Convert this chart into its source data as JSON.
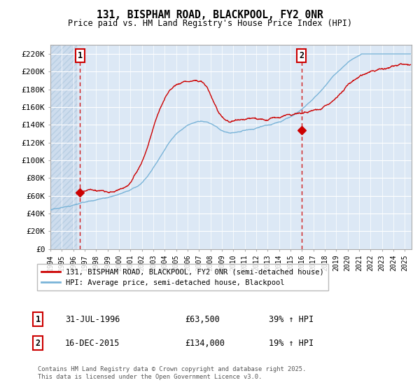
{
  "title1": "131, BISPHAM ROAD, BLACKPOOL, FY2 0NR",
  "title2": "Price paid vs. HM Land Registry's House Price Index (HPI)",
  "ylim": [
    0,
    230000
  ],
  "yticks": [
    0,
    20000,
    40000,
    60000,
    80000,
    100000,
    120000,
    140000,
    160000,
    180000,
    200000,
    220000
  ],
  "ytick_labels": [
    "£0",
    "£20K",
    "£40K",
    "£60K",
    "£80K",
    "£100K",
    "£120K",
    "£140K",
    "£160K",
    "£180K",
    "£200K",
    "£220K"
  ],
  "hpi_color": "#7ab4d8",
  "price_color": "#cc0000",
  "background_color": "#dce8f5",
  "hatch_color": "#c8d8ea",
  "sale1_year": 1996.58,
  "sale1_price": 63500,
  "sale1_label": "1",
  "sale2_year": 2015.96,
  "sale2_price": 134000,
  "sale2_label": "2",
  "legend_house": "131, BISPHAM ROAD, BLACKPOOL, FY2 0NR (semi-detached house)",
  "legend_hpi": "HPI: Average price, semi-detached house, Blackpool",
  "note1_label": "1",
  "note1_date": "31-JUL-1996",
  "note1_price": "£63,500",
  "note1_hpi": "39% ↑ HPI",
  "note2_label": "2",
  "note2_date": "16-DEC-2015",
  "note2_price": "£134,000",
  "note2_hpi": "19% ↑ HPI",
  "copyright": "Contains HM Land Registry data © Crown copyright and database right 2025.\nThis data is licensed under the Open Government Licence v3.0.",
  "xmin": 1994,
  "xmax": 2025.6
}
